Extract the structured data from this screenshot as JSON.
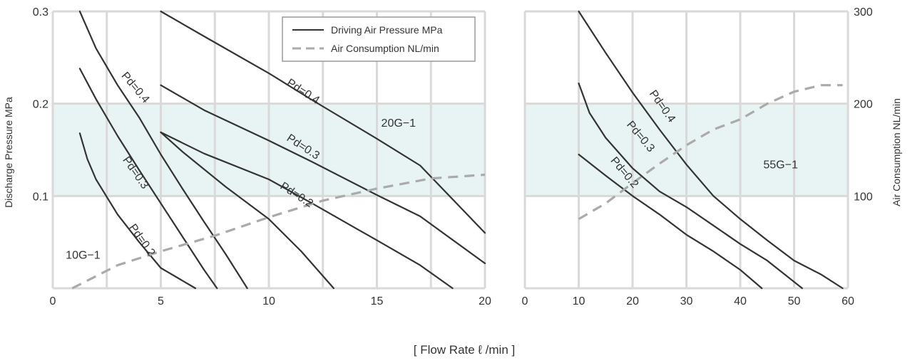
{
  "chart_data": [
    {
      "type": "line",
      "name": "10G-1 / 20G-1",
      "ylabel": "Discharge Pressure MPa",
      "y2label": "Air Consumption NL/min",
      "xlim": [
        0,
        20
      ],
      "ylim": [
        0,
        0.3
      ],
      "y2lim": [
        0,
        300
      ],
      "x_ticks": [
        "0",
        "5",
        "10",
        "15",
        "20"
      ],
      "y_ticks": [
        "0.1",
        "0.2",
        "0.3"
      ],
      "band": [
        0.1,
        0.2
      ],
      "series": [
        {
          "name": "Pd=0.4",
          "style": "solid",
          "points": [
            [
              1.25,
              0.3
            ],
            [
              2,
              0.26
            ],
            [
              3,
              0.22
            ],
            [
              4,
              0.185
            ],
            [
              5,
              0.145
            ],
            [
              6,
              0.108
            ],
            [
              7,
              0.072
            ],
            [
              8,
              0.037
            ],
            [
              9,
              0.0
            ]
          ]
        },
        {
          "name": "Pd=0.3",
          "style": "solid",
          "points": [
            [
              1.25,
              0.238
            ],
            [
              2,
              0.205
            ],
            [
              3,
              0.165
            ],
            [
              4,
              0.128
            ],
            [
              5,
              0.092
            ],
            [
              6,
              0.056
            ],
            [
              7,
              0.02
            ],
            [
              7.6,
              0.0
            ]
          ]
        },
        {
          "name": "Pd=0.2",
          "style": "solid",
          "points": [
            [
              1.25,
              0.168
            ],
            [
              1.6,
              0.14
            ],
            [
              2,
              0.118
            ],
            [
              3,
              0.08
            ],
            [
              4,
              0.05
            ],
            [
              5,
              0.022
            ],
            [
              6.6,
              0.0
            ]
          ]
        },
        {
          "name": "Pd=0.4",
          "style": "solid",
          "points": [
            [
              5,
              0.3
            ],
            [
              7,
              0.273
            ],
            [
              10,
              0.233
            ],
            [
              12,
              0.204
            ],
            [
              15,
              0.162
            ],
            [
              17,
              0.133
            ],
            [
              20,
              0.06
            ]
          ]
        },
        {
          "name": "Pd=0.3",
          "style": "solid",
          "points": [
            [
              5,
              0.22
            ],
            [
              7,
              0.193
            ],
            [
              10,
              0.16
            ],
            [
              12,
              0.137
            ],
            [
              15,
              0.101
            ],
            [
              17,
              0.078
            ],
            [
              20,
              0.027
            ]
          ]
        },
        {
          "name": "Pd=0.2",
          "style": "solid",
          "points": [
            [
              5,
              0.169
            ],
            [
              7,
              0.146
            ],
            [
              10,
              0.118
            ],
            [
              12,
              0.092
            ],
            [
              15,
              0.052
            ],
            [
              17,
              0.025
            ],
            [
              18.5,
              0.0
            ]
          ]
        },
        {
          "name": "Pd=0.2",
          "style": "solid",
          "points": [
            [
              5,
              0.169
            ],
            [
              6,
              0.148
            ],
            [
              8,
              0.11
            ],
            [
              10,
              0.075
            ],
            [
              11.5,
              0.04
            ],
            [
              13,
              0.0
            ]
          ]
        }
      ],
      "air_consumption": {
        "name": "Air Consumption NL/min",
        "style": "dashed",
        "points": [
          [
            0.9,
            0.0
          ],
          [
            3,
            0.025
          ],
          [
            5,
            0.04
          ],
          [
            7.5,
            0.057
          ],
          [
            10,
            0.077
          ],
          [
            12.5,
            0.095
          ],
          [
            15,
            0.108
          ],
          [
            17.5,
            0.119
          ],
          [
            20,
            0.123
          ]
        ]
      },
      "annotations": [
        {
          "text": "Pd=0.4",
          "x": 3.7,
          "y": 0.215,
          "angle": 50
        },
        {
          "text": "Pd=0.3",
          "x": 3.7,
          "y": 0.123,
          "angle": 55
        },
        {
          "text": "Pd=0.2",
          "x": 4.0,
          "y": 0.05,
          "angle": 55
        },
        {
          "text": "Pd=0.4",
          "x": 11.5,
          "y": 0.21,
          "angle": 33
        },
        {
          "text": "Pd=0.3",
          "x": 11.5,
          "y": 0.15,
          "angle": 33
        },
        {
          "text": "Pd=0.2",
          "x": 11.2,
          "y": 0.098,
          "angle": 33
        },
        {
          "text": "20G−1",
          "x": 16,
          "y": 0.175,
          "angle": 0
        },
        {
          "text": "10G−1",
          "x": 1.4,
          "y": 0.032,
          "angle": 0
        }
      ]
    },
    {
      "type": "line",
      "name": "55G-1",
      "xlim": [
        0,
        60
      ],
      "ylim": [
        0,
        0.3
      ],
      "y2lim": [
        0,
        300
      ],
      "x_ticks": [
        "0",
        "10",
        "20",
        "30",
        "40",
        "50",
        "60"
      ],
      "y2_ticks": [
        "100",
        "200",
        "300"
      ],
      "band": [
        0.1,
        0.2
      ],
      "series": [
        {
          "name": "Pd=0.4",
          "style": "solid",
          "points": [
            [
              10,
              0.3
            ],
            [
              15,
              0.255
            ],
            [
              20,
              0.212
            ],
            [
              25,
              0.172
            ],
            [
              30,
              0.134
            ],
            [
              35,
              0.1
            ],
            [
              40,
              0.075
            ],
            [
              45,
              0.052
            ],
            [
              50,
              0.03
            ],
            [
              55,
              0.015
            ],
            [
              59,
              0.0
            ]
          ]
        },
        {
          "name": "Pd=0.3",
          "style": "solid",
          "points": [
            [
              10,
              0.222
            ],
            [
              12,
              0.19
            ],
            [
              15,
              0.163
            ],
            [
              20,
              0.13
            ],
            [
              25,
              0.105
            ],
            [
              30,
              0.088
            ],
            [
              35,
              0.068
            ],
            [
              40,
              0.048
            ],
            [
              45,
              0.03
            ],
            [
              51.5,
              0.0
            ]
          ]
        },
        {
          "name": "Pd=0.2",
          "style": "solid",
          "points": [
            [
              10,
              0.145
            ],
            [
              15,
              0.122
            ],
            [
              20,
              0.1
            ],
            [
              25,
              0.08
            ],
            [
              30,
              0.058
            ],
            [
              35,
              0.04
            ],
            [
              40,
              0.02
            ],
            [
              44,
              0.0
            ]
          ]
        }
      ],
      "air_consumption": {
        "name": "Air Consumption NL/min",
        "style": "dashed",
        "points": [
          [
            10,
            0.075
          ],
          [
            15,
            0.092
          ],
          [
            20,
            0.114
          ],
          [
            25,
            0.135
          ],
          [
            30,
            0.155
          ],
          [
            35,
            0.172
          ],
          [
            40,
            0.183
          ],
          [
            45,
            0.2
          ],
          [
            50,
            0.213
          ],
          [
            55,
            0.22
          ],
          [
            59,
            0.22
          ]
        ]
      },
      "annotations": [
        {
          "text": "Pd=0.4",
          "x": 25,
          "y": 0.195,
          "angle": 55
        },
        {
          "text": "Pd=0.3",
          "x": 21,
          "y": 0.162,
          "angle": 50
        },
        {
          "text": "Pd=0.2",
          "x": 18,
          "y": 0.123,
          "angle": 50
        },
        {
          "text": "55G−1",
          "x": 47.5,
          "y": 0.13,
          "angle": 0
        }
      ]
    }
  ],
  "legend": {
    "placement": "top-right",
    "items": [
      {
        "label": "Driving Air Pressure MPa",
        "style": "solid"
      },
      {
        "label": "Air Consumption NL/min",
        "style": "dashed"
      }
    ]
  },
  "xlabel": "[ Flow Rate ℓ /min ]",
  "colors": {
    "band": "#e8f4f4",
    "grid": "#d9d9d9",
    "solid_line": "#333333",
    "dashed_line": "#aaaaaa",
    "text": "#333333"
  }
}
